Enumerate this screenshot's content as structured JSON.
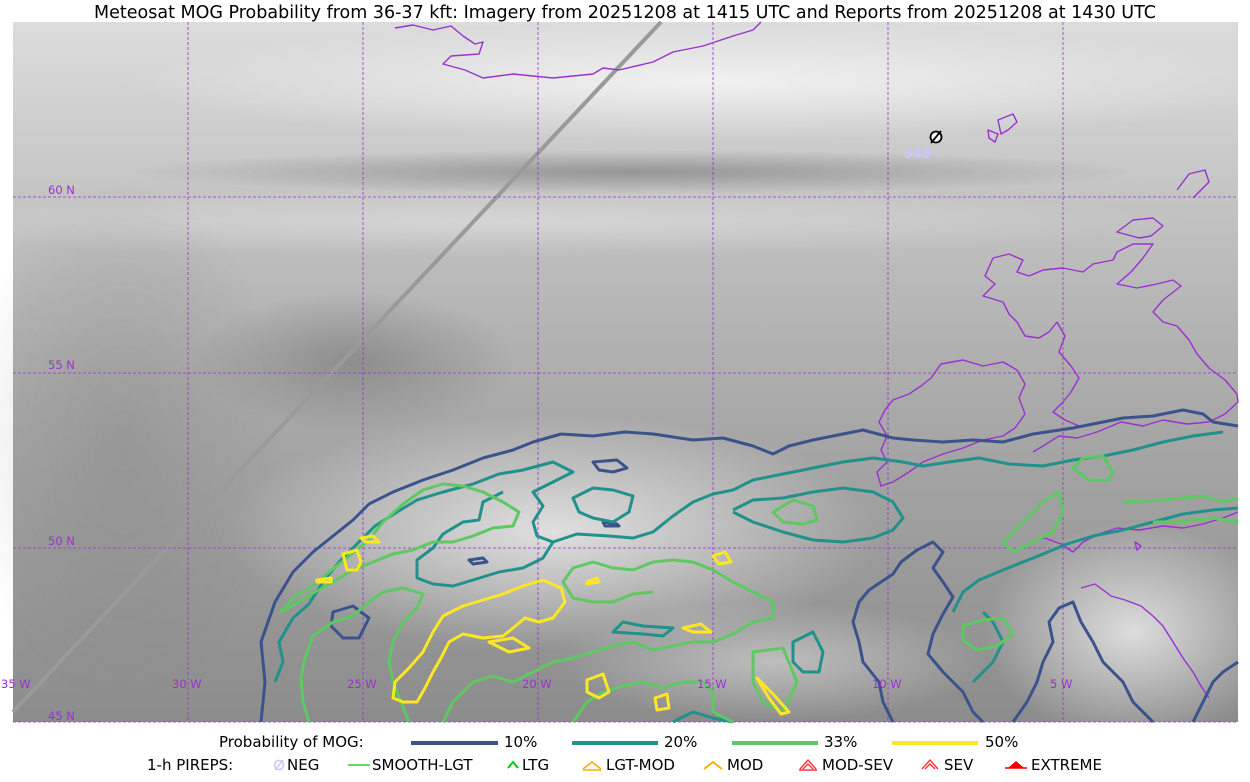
{
  "title": "Meteosat MOG Probability from 36-37 kft: Imagery from 20251208 at 1415 UTC and Reports from 20251208 at 1430 UTC",
  "map": {
    "lat_labels": [
      "60 N",
      "55 N",
      "50 N",
      "45 N"
    ],
    "lon_labels": [
      "35 W",
      "30 W",
      "25 W",
      "20 W",
      "15 W",
      "10 W",
      "5 W"
    ],
    "grid_color": "#9b30d0",
    "coast_color": "#9b30d0",
    "pirep_report": {
      "symbol": "neg-icon",
      "altitude_label": "340",
      "color": "#c8c8ff"
    },
    "probability_levels": [
      {
        "label": "10%",
        "color": "#3b528b"
      },
      {
        "label": "20%",
        "color": "#21918c"
      },
      {
        "label": "33%",
        "color": "#5ec962"
      },
      {
        "label": "50%",
        "color": "#fde725"
      }
    ]
  },
  "legend": {
    "prob_title": "Probability of MOG:",
    "prob_items": [
      {
        "label": "10%",
        "color": "#3b528b"
      },
      {
        "label": "20%",
        "color": "#21918c"
      },
      {
        "label": "33%",
        "color": "#5ec962"
      },
      {
        "label": "50%",
        "color": "#fde725"
      }
    ],
    "pirep_title": "1-h PIREPS:",
    "pirep_items": [
      {
        "label": "NEG",
        "icon": "neg-icon",
        "color": "#c8c8ff"
      },
      {
        "label": "SMOOTH-LGT",
        "icon": "smooth-lgt-icon",
        "color": "#33cc33"
      },
      {
        "label": "LTG",
        "icon": "ltg-icon",
        "color": "#00cc00"
      },
      {
        "label": "LGT-MOD",
        "icon": "lgt-mod-icon",
        "color": "#ffaa00"
      },
      {
        "label": "MOD",
        "icon": "mod-icon",
        "color": "#ffaa00"
      },
      {
        "label": "MOD-SEV",
        "icon": "mod-sev-icon",
        "color": "#ff3333"
      },
      {
        "label": "SEV",
        "icon": "sev-icon",
        "color": "#ff3333"
      },
      {
        "label": "EXTREME",
        "icon": "extreme-icon",
        "color": "#ee0000"
      }
    ]
  }
}
